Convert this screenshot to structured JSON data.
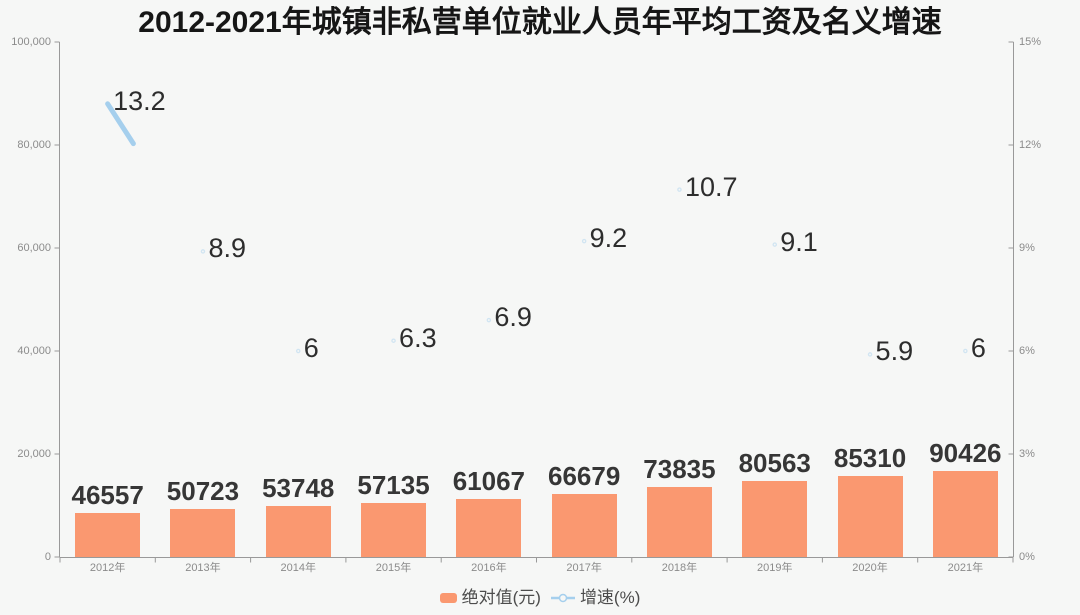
{
  "title": "2012-2021年城镇非私营单位就业人员年平均工资及名义增速",
  "legend": {
    "bar": {
      "label": "绝对值(元)"
    },
    "line": {
      "label": "增速(%)"
    }
  },
  "chart_data": {
    "type": "bar",
    "categories": [
      "2012年",
      "2013年",
      "2014年",
      "2015年",
      "2016年",
      "2017年",
      "2018年",
      "2019年",
      "2020年",
      "2021年"
    ],
    "series": [
      {
        "name": "绝对值(元)",
        "type": "bar",
        "axis": "left",
        "color": "#FA9870",
        "values": [
          46557,
          50723,
          53748,
          57135,
          61067,
          66679,
          73835,
          80563,
          85310,
          90426
        ]
      },
      {
        "name": "增速(%)",
        "type": "line",
        "axis": "right",
        "color": "#A5CFED",
        "values": [
          13.2,
          8.9,
          6,
          6.3,
          6.9,
          9.2,
          10.7,
          9.1,
          5.9,
          6
        ]
      }
    ],
    "title": "2012-2021年城镇非私营单位就业人员年平均工资及名义增速",
    "left_axis": {
      "min": 0,
      "max": 100000,
      "tick_labels": [
        "0",
        "20,000",
        "40,000",
        "60,000",
        "80,000",
        "100,000"
      ]
    },
    "right_axis": {
      "min": 0,
      "max": 15,
      "tick_labels": [
        "0%",
        "3%",
        "6%",
        "9%",
        "12%",
        "15%"
      ]
    },
    "layout_hints": {
      "legend_position": "bottom",
      "grid": false,
      "bar_animation_progress": 0.184,
      "line_drawn_fraction": 0.27,
      "axis_color": "#999999",
      "label_color": "#8b8b8b"
    }
  }
}
